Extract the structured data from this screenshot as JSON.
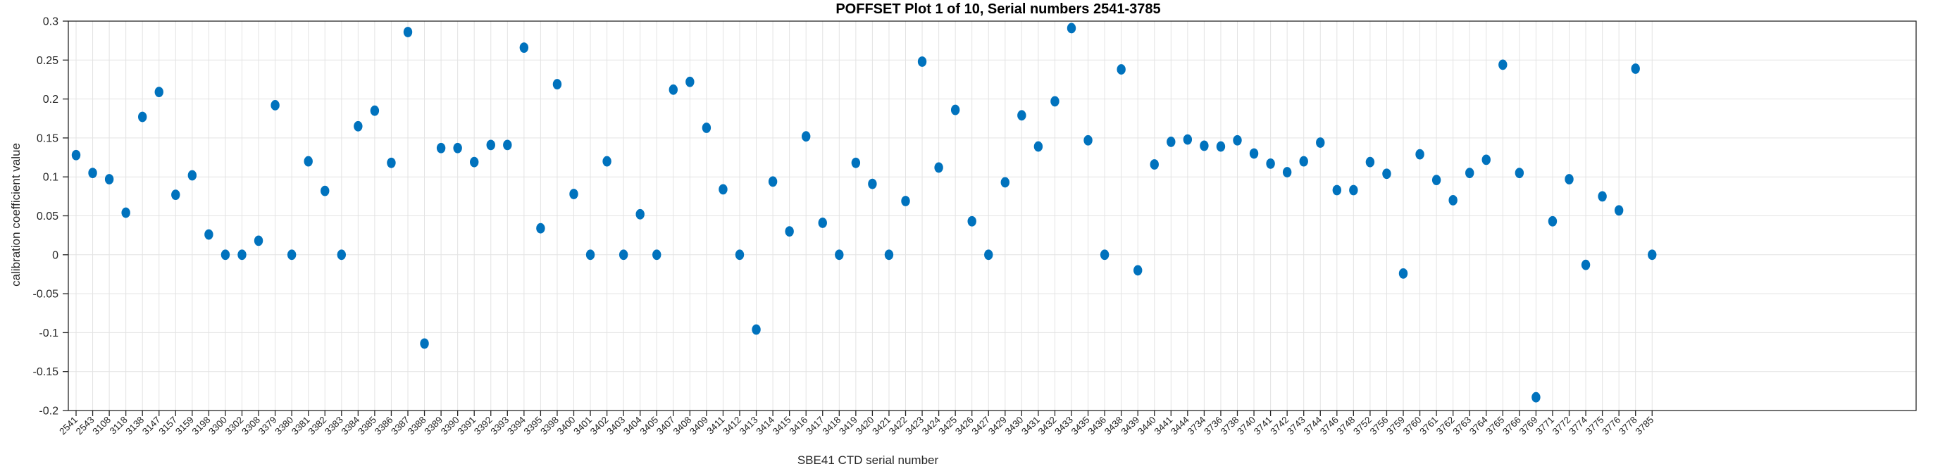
{
  "figure": {
    "title": "POFFSET Plot 1 of 10, Serial numbers 2541-3785",
    "xlabel": "SBE41 CTD serial number",
    "ylabel": "calibration coefficient value"
  },
  "chart_data": {
    "type": "scatter",
    "title": "POFFSET Plot 1 of 10, Serial numbers 2541-3785",
    "xlabel": "SBE41 CTD serial number",
    "ylabel": "calibration coefficient value",
    "ylim": [
      -0.2,
      0.3
    ],
    "yticks": [
      0.3,
      0.25,
      0.2,
      0.15,
      0.1,
      0.05,
      0,
      -0.05,
      -0.1,
      -0.15,
      -0.2
    ],
    "ytick_labels": [
      "0.3",
      "0.25",
      "0.2",
      "0.15",
      "0.1",
      "0.05",
      "0",
      "-0.05",
      "-0.1",
      "-0.15",
      "-0.2"
    ],
    "grid": true,
    "legend": "none",
    "marker_color": "#0072BD",
    "axis_color": "#262626",
    "grid_color": "#e3e3e3",
    "categories": [
      "2541",
      "2543",
      "3108",
      "3118",
      "3138",
      "3147",
      "3157",
      "3159",
      "3198",
      "3300",
      "3302",
      "3308",
      "3379",
      "3380",
      "3381",
      "3382",
      "3383",
      "3384",
      "3385",
      "3386",
      "3387",
      "3388",
      "3389",
      "3390",
      "3391",
      "3392",
      "3393",
      "3394",
      "3395",
      "3398",
      "3400",
      "3401",
      "3402",
      "3403",
      "3404",
      "3405",
      "3407",
      "3408",
      "3409",
      "3411",
      "3412",
      "3413",
      "3414",
      "3415",
      "3416",
      "3417",
      "3418",
      "3419",
      "3420",
      "3421",
      "3422",
      "3423",
      "3424",
      "3425",
      "3426",
      "3427",
      "3429",
      "3430",
      "3431",
      "3432",
      "3433",
      "3435",
      "3436",
      "3438",
      "3439",
      "3440",
      "3441",
      "3444",
      "3734",
      "3736",
      "3738",
      "3740",
      "3741",
      "3742",
      "3743",
      "3744",
      "3746",
      "3748",
      "3752",
      "3756",
      "3759",
      "3760",
      "3761",
      "3762",
      "3763",
      "3764",
      "3765",
      "3766",
      "3769",
      "3771",
      "3772",
      "3774",
      "3775",
      "3776",
      "3778",
      "3785"
    ],
    "values": [
      0.128,
      0.105,
      0.097,
      0.054,
      0.177,
      0.209,
      0.077,
      0.102,
      0.026,
      0.0,
      0.0,
      0.018,
      0.192,
      0.0,
      0.12,
      0.082,
      0.0,
      0.165,
      0.185,
      0.118,
      0.286,
      -0.114,
      0.137,
      0.137,
      0.119,
      0.141,
      0.141,
      0.266,
      0.034,
      0.219,
      0.078,
      0.0,
      0.12,
      0.0,
      0.052,
      0.0,
      0.212,
      0.222,
      0.163,
      0.084,
      0.0,
      -0.096,
      0.094,
      0.03,
      0.152,
      0.041,
      0.0,
      0.118,
      0.091,
      0.0,
      0.069,
      0.248,
      0.112,
      0.186,
      0.043,
      0.0,
      0.093,
      0.179,
      0.139,
      0.197,
      0.291,
      0.147,
      0.0,
      0.238,
      -0.02,
      0.116,
      0.145,
      0.148,
      0.14,
      0.139,
      0.147,
      0.13,
      0.117,
      0.106,
      0.12,
      0.144,
      0.083,
      0.083,
      0.119,
      0.104,
      -0.024,
      0.129,
      0.096,
      0.07,
      0.105,
      0.122,
      0.244,
      0.105,
      -0.183,
      0.043,
      0.097,
      -0.013,
      0.075,
      0.057,
      0.239,
      0.0
    ]
  }
}
